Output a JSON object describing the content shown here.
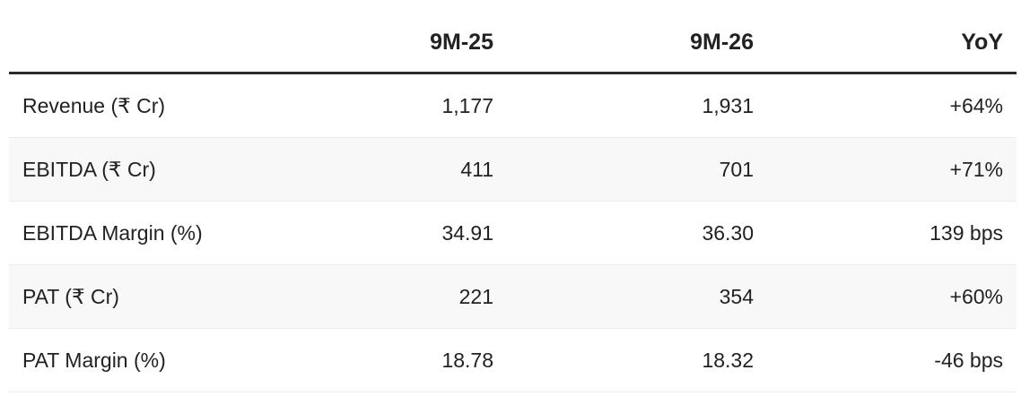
{
  "table": {
    "columns": [
      "9M-25",
      "9M-26",
      "YoY"
    ],
    "rows": [
      [
        "Revenue (₹ Cr)",
        "1,177",
        "1,931",
        "+64%"
      ],
      [
        "EBITDA (₹ Cr)",
        "411",
        "701",
        "+71%"
      ],
      [
        "EBITDA Margin (%)",
        "34.91",
        "36.30",
        "139 bps"
      ],
      [
        "PAT (₹ Cr)",
        "221",
        "354",
        "+60%"
      ],
      [
        "PAT Margin (%)",
        "18.78",
        "18.32",
        "-46 bps"
      ]
    ]
  }
}
